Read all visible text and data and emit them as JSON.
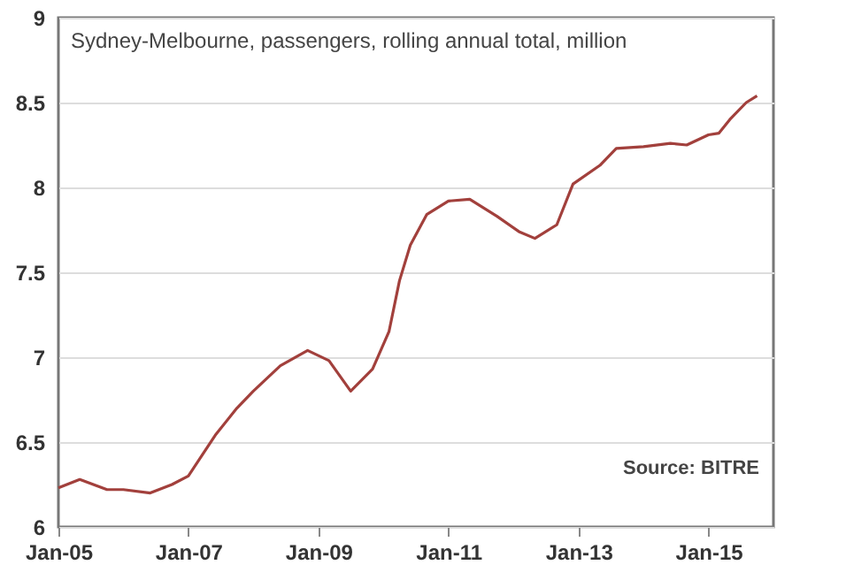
{
  "chart_data": {
    "type": "line",
    "title": "Sydney-Melbourne, passengers, rolling annual total, million",
    "annotations": [
      "Source: BITRE"
    ],
    "x": [
      "2005-01",
      "2005-05",
      "2005-10",
      "2006-01",
      "2006-06",
      "2006-10",
      "2007-01",
      "2007-06",
      "2007-10",
      "2008-01",
      "2008-06",
      "2008-11",
      "2009-03",
      "2009-07",
      "2009-11",
      "2010-02",
      "2010-04",
      "2010-06",
      "2010-09",
      "2011-01",
      "2011-05",
      "2011-10",
      "2012-02",
      "2012-05",
      "2012-09",
      "2012-12",
      "2013-05",
      "2013-08",
      "2014-01",
      "2014-06",
      "2014-09",
      "2015-01",
      "2015-03",
      "2015-05",
      "2015-08",
      "2015-10"
    ],
    "series": [
      {
        "color": "#a2403c",
        "values": [
          6.23,
          6.28,
          6.22,
          6.22,
          6.2,
          6.25,
          6.3,
          6.54,
          6.7,
          6.8,
          6.95,
          7.04,
          6.98,
          6.8,
          6.93,
          7.15,
          7.45,
          7.66,
          7.84,
          7.92,
          7.93,
          7.83,
          7.74,
          7.7,
          7.78,
          8.02,
          8.13,
          8.23,
          8.24,
          8.26,
          8.25,
          8.31,
          8.32,
          8.4,
          8.5,
          8.54
        ]
      }
    ],
    "xlim": [
      "2005-01",
      "2016-01"
    ],
    "xticks": [
      {
        "value": "2005-01",
        "label": "Jan-05"
      },
      {
        "value": "2007-01",
        "label": "Jan-07"
      },
      {
        "value": "2009-01",
        "label": "Jan-09"
      },
      {
        "value": "2011-01",
        "label": "Jan-11"
      },
      {
        "value": "2013-01",
        "label": "Jan-13"
      },
      {
        "value": "2015-01",
        "label": "Jan-15"
      }
    ],
    "ylim": [
      6,
      9
    ],
    "yticks": [
      6,
      6.5,
      7,
      7.5,
      8,
      8.5,
      9
    ],
    "grid": "y",
    "legend": false,
    "marker": "none",
    "line_style": "solid"
  }
}
